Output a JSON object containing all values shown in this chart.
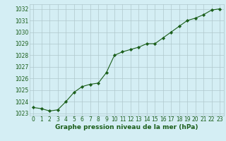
{
  "x": [
    0,
    1,
    2,
    3,
    4,
    5,
    6,
    7,
    8,
    9,
    10,
    11,
    12,
    13,
    14,
    15,
    16,
    17,
    18,
    19,
    20,
    21,
    22,
    23
  ],
  "y": [
    1023.5,
    1023.4,
    1023.2,
    1023.3,
    1024.0,
    1024.8,
    1025.3,
    1025.5,
    1025.6,
    1026.5,
    1028.0,
    1028.3,
    1028.5,
    1028.7,
    1029.0,
    1029.0,
    1029.5,
    1030.0,
    1030.5,
    1031.0,
    1031.2,
    1031.5,
    1031.9,
    1032.0
  ],
  "line_color": "#1a5e1a",
  "marker_color": "#1a5e1a",
  "bg_color": "#d4eef4",
  "grid_color": "#b0c8cc",
  "title": "Graphe pression niveau de la mer (hPa)",
  "ylim_min": 1022.8,
  "ylim_max": 1032.4,
  "yticks": [
    1023,
    1024,
    1025,
    1026,
    1027,
    1028,
    1029,
    1030,
    1031,
    1032
  ],
  "xticks": [
    0,
    1,
    2,
    3,
    4,
    5,
    6,
    7,
    8,
    9,
    10,
    11,
    12,
    13,
    14,
    15,
    16,
    17,
    18,
    19,
    20,
    21,
    22,
    23
  ],
  "title_fontsize": 6.5,
  "tick_fontsize": 5.5
}
